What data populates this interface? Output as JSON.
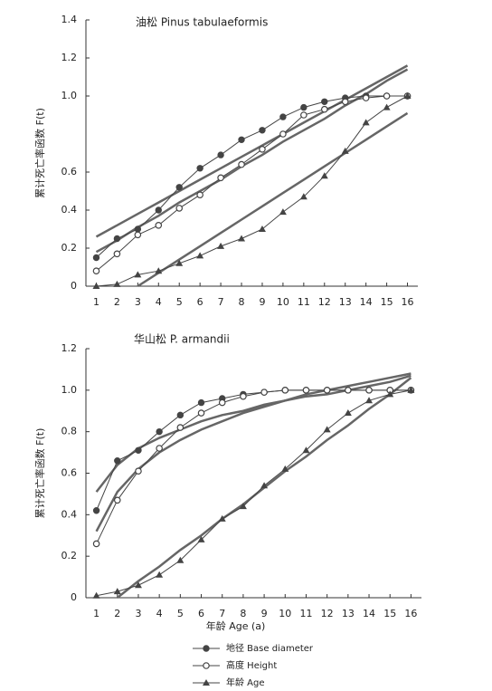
{
  "chart_data": [
    {
      "type": "line",
      "title": "油松 Pinus tabulaeformis",
      "y_label": "累计死亡率函数 F(t)",
      "x": [
        1,
        2,
        3,
        4,
        5,
        6,
        7,
        8,
        9,
        10,
        11,
        12,
        13,
        14,
        15,
        16
      ],
      "xlim": [
        0.5,
        16.5
      ],
      "xticks": [
        1,
        2,
        3,
        4,
        5,
        6,
        7,
        8,
        9,
        10,
        11,
        12,
        13,
        14,
        15,
        16
      ],
      "ylim": [
        0,
        1.4
      ],
      "yticks": [
        0,
        0.2,
        0.4,
        0.6,
        {
          "value": 1,
          "label": "1.0"
        },
        1.2,
        1.4
      ],
      "series": [
        {
          "color": "#666",
          "marker": "none",
          "width": 2.5,
          "values": [
            0.26,
            0.32,
            0.38,
            0.44,
            0.5,
            0.56,
            0.62,
            0.68,
            0.74,
            0.8,
            0.86,
            0.92,
            0.98,
            1.04,
            1.1,
            1.16
          ]
        },
        {
          "color": "#666",
          "marker": "none",
          "width": 2.5,
          "values": [
            0.18,
            0.24,
            0.31,
            0.37,
            0.44,
            0.5,
            0.56,
            0.63,
            0.69,
            0.76,
            0.82,
            0.88,
            0.95,
            1.01,
            1.08,
            1.14
          ]
        },
        {
          "color": "#666",
          "marker": "none",
          "width": 2.5,
          "values": [
            null,
            null,
            0,
            0.07,
            0.14,
            0.21,
            0.28,
            0.35,
            0.42,
            0.49,
            0.56,
            0.63,
            0.7,
            0.77,
            0.84,
            0.91
          ]
        },
        {
          "color": "#444",
          "marker": "circle-filled",
          "width": 1,
          "values": [
            0.15,
            0.25,
            0.3,
            0.4,
            0.52,
            0.62,
            0.69,
            0.77,
            0.82,
            0.89,
            0.94,
            0.97,
            0.99,
            1.0,
            1.0,
            1.0
          ]
        },
        {
          "color": "#444",
          "marker": "circle-open",
          "width": 1,
          "values": [
            0.08,
            0.17,
            0.27,
            0.32,
            0.41,
            0.48,
            0.57,
            0.64,
            0.72,
            0.8,
            0.9,
            0.93,
            0.97,
            0.99,
            1.0,
            1.0
          ]
        },
        {
          "color": "#444",
          "marker": "triangle",
          "width": 1,
          "values": [
            0.0,
            0.01,
            0.06,
            0.08,
            0.12,
            0.16,
            0.21,
            0.25,
            0.3,
            0.39,
            0.47,
            0.58,
            0.71,
            0.86,
            0.94,
            1.0
          ]
        }
      ]
    },
    {
      "type": "line",
      "title": "华山松 P. armandii",
      "y_label": "累计死亡率函数 F(t)",
      "x_label": "年龄 Age (a)",
      "x": [
        1,
        2,
        3,
        4,
        5,
        6,
        7,
        8,
        9,
        10,
        11,
        12,
        13,
        14,
        15,
        16
      ],
      "xlim": [
        0.5,
        16.5
      ],
      "xticks": [
        1,
        2,
        3,
        4,
        5,
        6,
        7,
        8,
        9,
        10,
        11,
        12,
        13,
        14,
        15,
        16
      ],
      "ylim": [
        0,
        1.2
      ],
      "yticks": [
        0,
        0.2,
        0.4,
        0.6,
        0.8,
        {
          "value": 1,
          "label": "1.0"
        },
        1.2
      ],
      "legend": "bottom",
      "series": [
        {
          "color": "#666",
          "marker": "none",
          "width": 2.5,
          "values": [
            0.51,
            0.64,
            0.72,
            0.77,
            0.81,
            0.85,
            0.88,
            0.9,
            0.93,
            0.95,
            0.97,
            0.98,
            1.0,
            1.02,
            1.04,
            1.07
          ]
        },
        {
          "color": "#666",
          "marker": "none",
          "width": 2.5,
          "values": [
            0.32,
            0.51,
            0.62,
            0.7,
            0.76,
            0.81,
            0.85,
            0.89,
            0.92,
            0.95,
            0.98,
            1.0,
            1.02,
            1.04,
            1.06,
            1.08
          ]
        },
        {
          "color": "#666",
          "marker": "none",
          "width": 2.5,
          "values": [
            null,
            0,
            0.08,
            0.15,
            0.23,
            0.3,
            0.38,
            0.45,
            0.53,
            0.61,
            0.68,
            0.76,
            0.83,
            0.91,
            0.98,
            1.06
          ]
        },
        {
          "name": "地径 Base diameter",
          "color": "#444",
          "marker": "circle-filled",
          "width": 1,
          "values": [
            0.42,
            0.66,
            0.71,
            0.8,
            0.88,
            0.94,
            0.96,
            0.98,
            0.99,
            1.0,
            1.0,
            1.0,
            1.0,
            1.0,
            1.0,
            1.0
          ]
        },
        {
          "name": "高度 Height",
          "color": "#444",
          "marker": "circle-open",
          "width": 1,
          "values": [
            0.26,
            0.47,
            0.61,
            0.72,
            0.82,
            0.89,
            0.94,
            0.97,
            0.99,
            1.0,
            1.0,
            1.0,
            1.0,
            1.0,
            1.0,
            1.0
          ]
        },
        {
          "name": "年龄 Age",
          "color": "#444",
          "marker": "triangle",
          "width": 1,
          "values": [
            0.01,
            0.03,
            0.06,
            0.11,
            0.18,
            0.28,
            0.38,
            0.44,
            0.54,
            0.62,
            0.71,
            0.81,
            0.89,
            0.95,
            0.98,
            1.0
          ]
        }
      ]
    }
  ]
}
